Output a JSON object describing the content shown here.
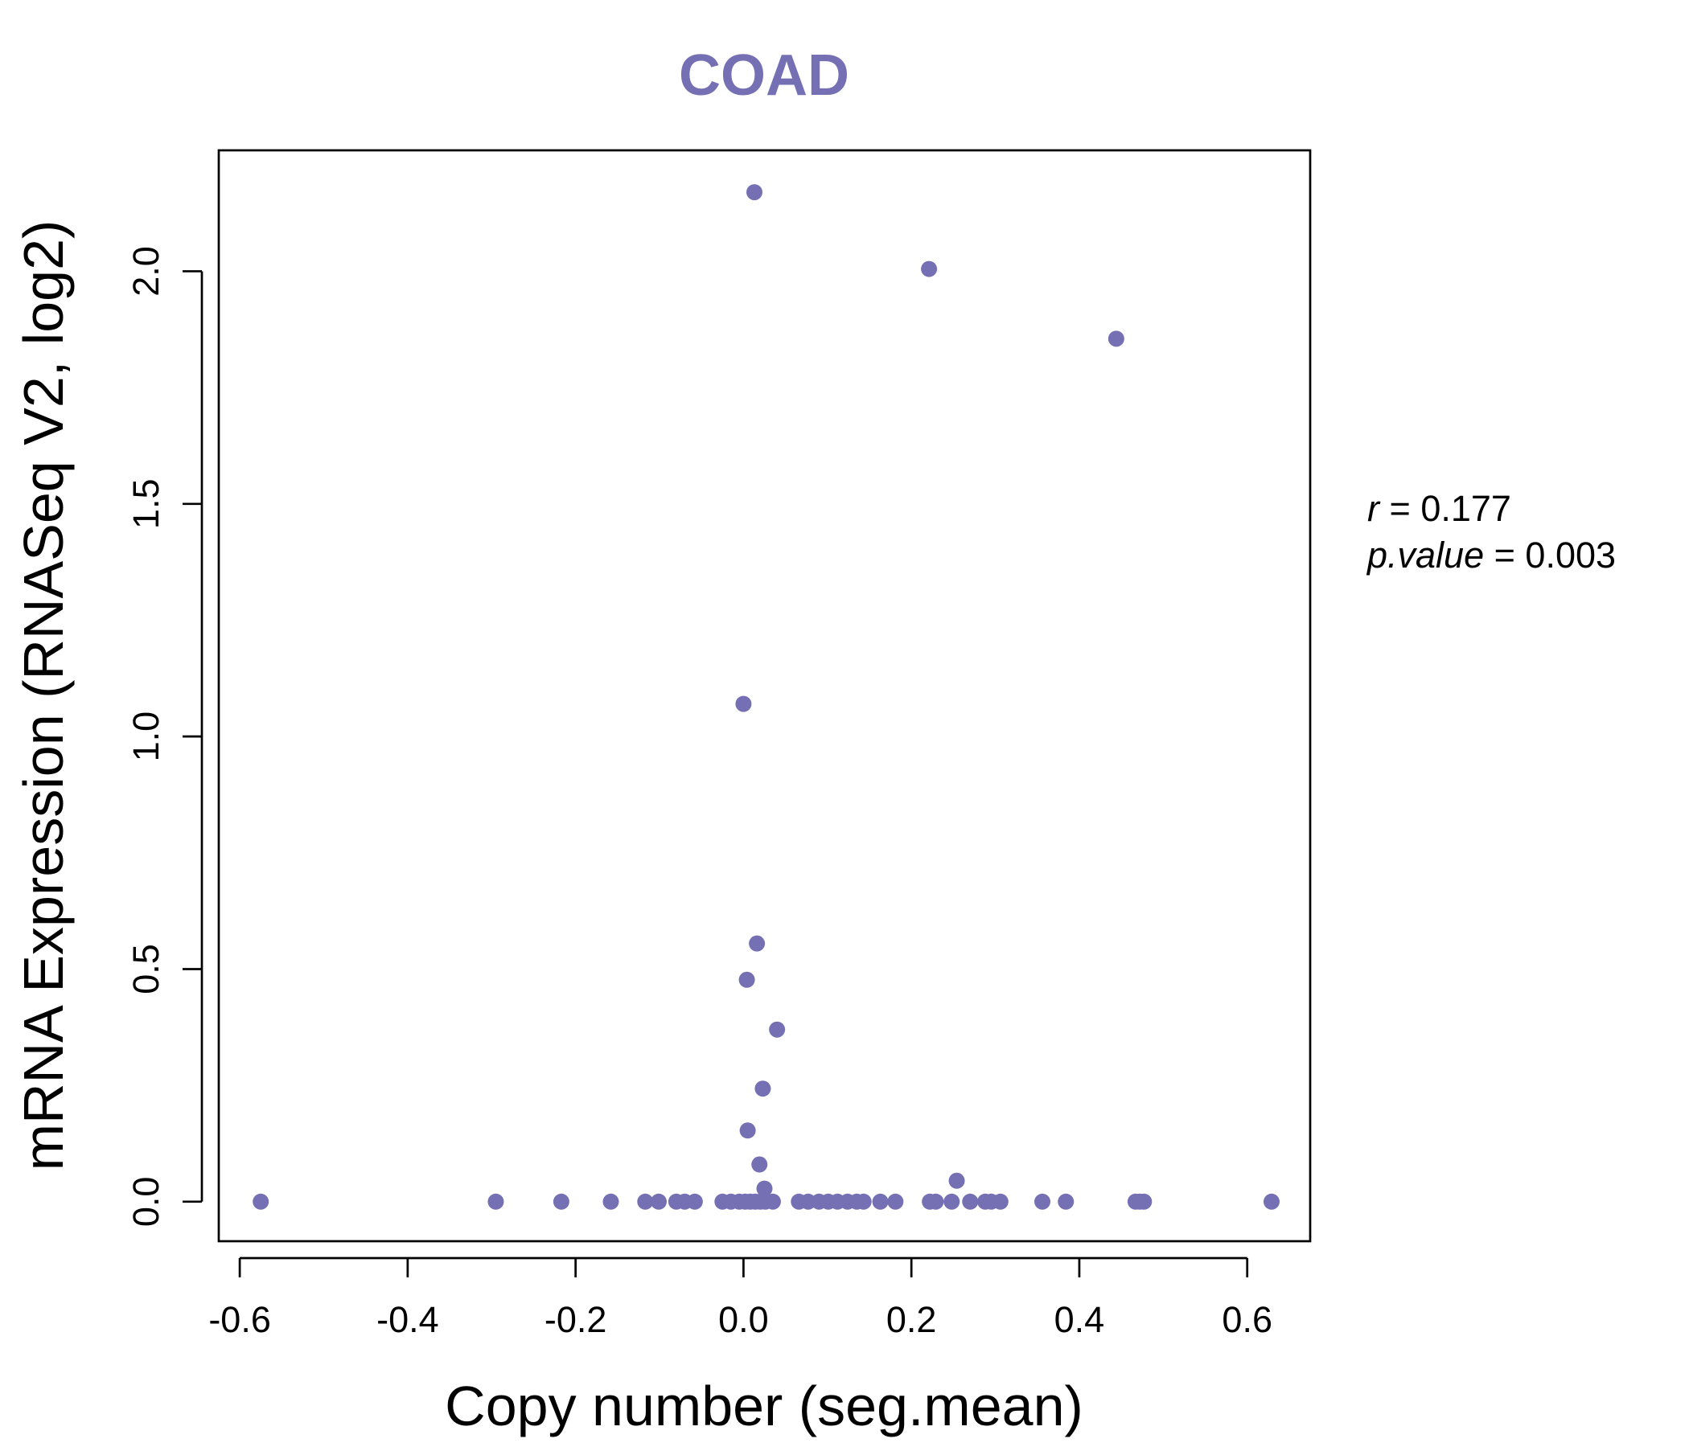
{
  "chart_data": {
    "type": "scatter",
    "title": "COAD",
    "xlabel": "Copy number (seg.mean)",
    "ylabel": "mRNA Expression (RNASeq V2, log2)",
    "xlim": [
      -0.625,
      0.675
    ],
    "ylim": [
      -0.085,
      2.26
    ],
    "xticks": [
      -0.6,
      -0.4,
      -0.2,
      0.0,
      0.2,
      0.4,
      0.6
    ],
    "xtick_labels": [
      "-0.6",
      "-0.4",
      "-0.2",
      "0.0",
      "0.2",
      "0.4",
      "0.6"
    ],
    "yticks": [
      0.0,
      0.5,
      1.0,
      1.5,
      2.0
    ],
    "ytick_labels": [
      "0.0",
      "0.5",
      "1.0",
      "1.5",
      "2.0"
    ],
    "color": "#7570b3",
    "annotation": {
      "r_label": "r",
      "r_value": "0.177",
      "p_label": "p.value",
      "p_value": "0.003"
    },
    "points": [
      {
        "x": 0.013,
        "y": 2.17
      },
      {
        "x": 0.221,
        "y": 2.005
      },
      {
        "x": 0.444,
        "y": 1.855
      },
      {
        "x": 0.0,
        "y": 1.07
      },
      {
        "x": 0.016,
        "y": 0.555
      },
      {
        "x": 0.004,
        "y": 0.477
      },
      {
        "x": 0.04,
        "y": 0.37
      },
      {
        "x": 0.023,
        "y": 0.243
      },
      {
        "x": 0.005,
        "y": 0.153
      },
      {
        "x": 0.019,
        "y": 0.08
      },
      {
        "x": 0.254,
        "y": 0.045
      },
      {
        "x": 0.025,
        "y": 0.028
      },
      {
        "x": -0.575,
        "y": 0.0
      },
      {
        "x": -0.295,
        "y": 0.0
      },
      {
        "x": -0.217,
        "y": 0.0
      },
      {
        "x": -0.158,
        "y": 0.0
      },
      {
        "x": -0.117,
        "y": 0.0
      },
      {
        "x": -0.101,
        "y": 0.0
      },
      {
        "x": -0.08,
        "y": 0.0
      },
      {
        "x": -0.07,
        "y": 0.0
      },
      {
        "x": -0.058,
        "y": 0.0
      },
      {
        "x": -0.025,
        "y": 0.0
      },
      {
        "x": -0.015,
        "y": 0.0
      },
      {
        "x": -0.005,
        "y": 0.0
      },
      {
        "x": 0.002,
        "y": 0.0
      },
      {
        "x": 0.008,
        "y": 0.0
      },
      {
        "x": 0.014,
        "y": 0.0
      },
      {
        "x": 0.02,
        "y": 0.0
      },
      {
        "x": 0.026,
        "y": 0.0
      },
      {
        "x": 0.035,
        "y": 0.0
      },
      {
        "x": 0.066,
        "y": 0.0
      },
      {
        "x": 0.077,
        "y": 0.0
      },
      {
        "x": 0.09,
        "y": 0.0
      },
      {
        "x": 0.101,
        "y": 0.0
      },
      {
        "x": 0.112,
        "y": 0.0
      },
      {
        "x": 0.124,
        "y": 0.0
      },
      {
        "x": 0.135,
        "y": 0.0
      },
      {
        "x": 0.143,
        "y": 0.0
      },
      {
        "x": 0.163,
        "y": 0.0
      },
      {
        "x": 0.181,
        "y": 0.0
      },
      {
        "x": 0.222,
        "y": 0.0
      },
      {
        "x": 0.229,
        "y": 0.0
      },
      {
        "x": 0.248,
        "y": 0.0
      },
      {
        "x": 0.27,
        "y": 0.0
      },
      {
        "x": 0.288,
        "y": 0.0
      },
      {
        "x": 0.295,
        "y": 0.0
      },
      {
        "x": 0.306,
        "y": 0.0
      },
      {
        "x": 0.356,
        "y": 0.0
      },
      {
        "x": 0.384,
        "y": 0.0
      },
      {
        "x": 0.467,
        "y": 0.0
      },
      {
        "x": 0.472,
        "y": 0.0
      },
      {
        "x": 0.477,
        "y": 0.0
      },
      {
        "x": 0.629,
        "y": 0.0
      }
    ]
  }
}
